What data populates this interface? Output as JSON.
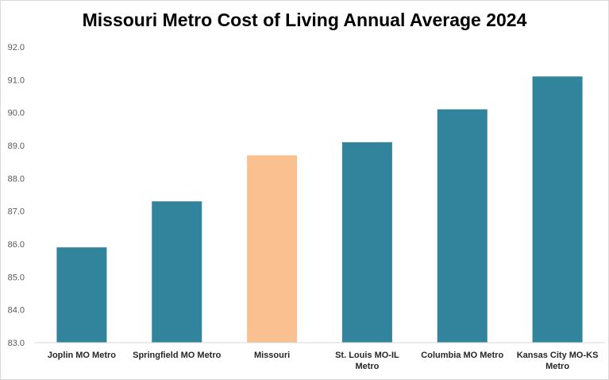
{
  "chart_data": {
    "type": "bar",
    "title": "Missouri Metro Cost of Living Annual Average 2024",
    "xlabel": "",
    "ylabel": "",
    "categories": [
      "Joplin MO Metro",
      "Springfield MO Metro",
      "Missouri",
      "St. Louis MO-IL Metro",
      "Columbia MO Metro",
      "Kansas City MO-KS Metro"
    ],
    "values": [
      85.9,
      87.3,
      88.7,
      89.1,
      90.1,
      91.1
    ],
    "ylim": [
      83.0,
      92.0
    ],
    "yticks": [
      "83.0",
      "84.0",
      "85.0",
      "86.0",
      "87.0",
      "88.0",
      "89.0",
      "90.0",
      "91.0",
      "92.0"
    ],
    "grid": false,
    "legend": "none",
    "colors": {
      "default": "#31849b",
      "highlight": "#fac090",
      "highlight_category": "Missouri"
    }
  }
}
